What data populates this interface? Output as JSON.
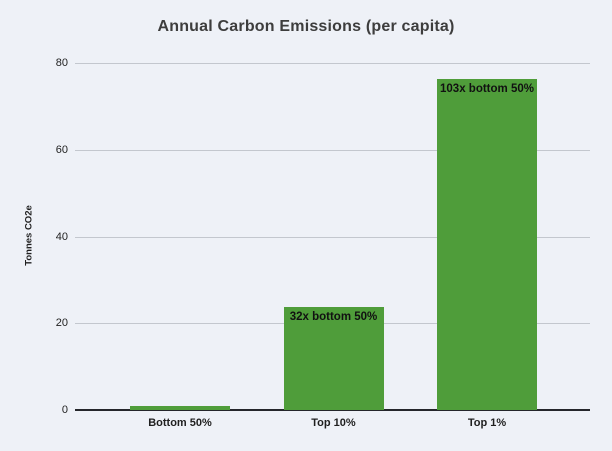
{
  "chart_data": {
    "type": "bar",
    "title": "Annual Carbon Emissions (per capita)",
    "xlabel": "",
    "ylabel": "Tonnes CO2e",
    "categories": [
      "Bottom 50%",
      "Top 10%",
      "Top 1%"
    ],
    "values": [
      0.74,
      23.7,
      76.2
    ],
    "annotations": [
      null,
      "32x bottom 50%",
      "103x bottom 50%"
    ],
    "yticks": [
      0,
      20,
      40,
      60,
      80
    ],
    "ylim": [
      0,
      80
    ],
    "grid": true,
    "legend_position": "none",
    "colors": {
      "bar": "#4f9d3a",
      "background": "#eef1f7",
      "gridline": "#c3c7ce",
      "axis_line": "#24262b",
      "tick_text": "#1f1f1f",
      "annotation_text": "#111111",
      "title_text": "#3d3d3d",
      "y_axis_title_text": "#1f1f1f"
    }
  }
}
